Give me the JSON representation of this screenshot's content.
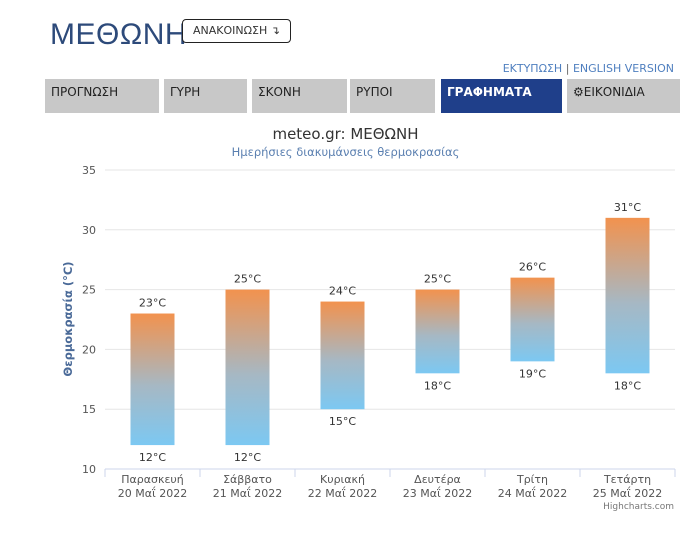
{
  "header": {
    "title": "ΜΕΘΩΝΗ",
    "announce_label": "ΑΝΑΚΟΙΝΩΣΗ ↴",
    "print_link": "ΕΚΤΥΠΩΣΗ",
    "separator": "|",
    "english_link": "ENGLISH VERSION"
  },
  "tabs": [
    {
      "label": "ΠΡΟΓΝΩΣΗ"
    },
    {
      "label": "ΓΥΡΗ"
    },
    {
      "label": "ΣΚΟΝΗ"
    },
    {
      "label": "ΡΥΠΟΙ"
    },
    {
      "label": "ΓΡΑΦΗΜΑΤΑ"
    },
    {
      "label": "⚙ΕΙΚΟΝΙΔΙΑ"
    }
  ],
  "active_tab": 4,
  "colors": {
    "bar_top": "#f2924e",
    "bar_bottom": "#7cc8f2",
    "active_tab": "#1f3f8a",
    "title": "#2d4a7a"
  },
  "chart_data": {
    "type": "bar",
    "title": "meteo.gr: ΜΕΘΩΝΗ",
    "subtitle": "Ημερήσιες διακυμάνσεις θερμοκρασίας",
    "ylabel": "Θερμοκρασία (°C)",
    "ylim": [
      10,
      35
    ],
    "yticks": [
      "10",
      "15",
      "20",
      "25",
      "30",
      "35"
    ],
    "grid": true,
    "categories": [
      {
        "day": "Παρασκευή",
        "date": "20 Μαΐ 2022"
      },
      {
        "day": "Σάββατο",
        "date": "21 Μαΐ 2022"
      },
      {
        "day": "Κυριακή",
        "date": "22 Μαΐ 2022"
      },
      {
        "day": "Δευτέρα",
        "date": "23 Μαΐ 2022"
      },
      {
        "day": "Τρίτη",
        "date": "24 Μαΐ 2022"
      },
      {
        "day": "Τετάρτη",
        "date": "25 Μαΐ 2022"
      }
    ],
    "low": [
      12,
      12,
      15,
      18,
      19,
      18
    ],
    "high": [
      23,
      25,
      24,
      25,
      26,
      31
    ],
    "low_labels": [
      "12°C",
      "12°C",
      "15°C",
      "18°C",
      "19°C",
      "18°C"
    ],
    "high_labels": [
      "23°C",
      "25°C",
      "24°C",
      "25°C",
      "26°C",
      "31°C"
    ],
    "credit": "Highcharts.com"
  }
}
